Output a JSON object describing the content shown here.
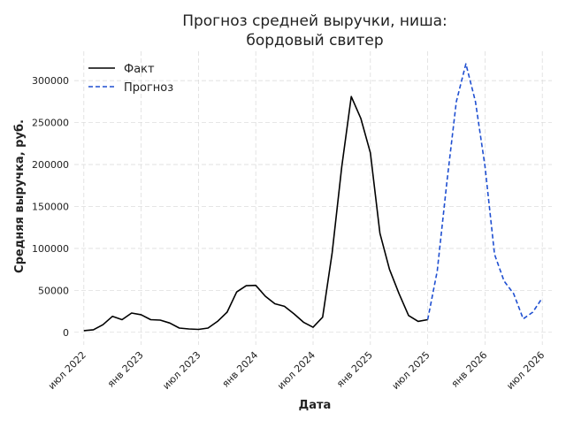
{
  "chart_data": {
    "type": "line",
    "title_lines": [
      "Прогноз средней выручки, ниша:",
      "бордовый свитер"
    ],
    "xlabel": "Дата",
    "ylabel": "Средняя выручка, руб.",
    "ylim": [
      -15000,
      335000
    ],
    "yticks": [
      0,
      50000,
      100000,
      150000,
      200000,
      250000,
      300000
    ],
    "xlim": [
      "2022-06",
      "2026-08"
    ],
    "xticks": [
      {
        "date": "2022-07",
        "label": "июл 2022"
      },
      {
        "date": "2023-01",
        "label": "янв 2023"
      },
      {
        "date": "2023-07",
        "label": "июл 2023"
      },
      {
        "date": "2024-01",
        "label": "янв 2024"
      },
      {
        "date": "2024-07",
        "label": "июл 2024"
      },
      {
        "date": "2025-01",
        "label": "янв 2025"
      },
      {
        "date": "2025-07",
        "label": "июл 2025"
      },
      {
        "date": "2026-01",
        "label": "янв 2026"
      },
      {
        "date": "2026-07",
        "label": "июл 2026"
      }
    ],
    "grid": true,
    "legend_position": "top-left",
    "series": [
      {
        "name": "Факт",
        "color": "#000000",
        "style": "solid",
        "x": [
          "2022-07",
          "2022-08",
          "2022-09",
          "2022-10",
          "2022-11",
          "2022-12",
          "2023-01",
          "2023-02",
          "2023-03",
          "2023-04",
          "2023-05",
          "2023-06",
          "2023-07",
          "2023-08",
          "2023-09",
          "2023-10",
          "2023-11",
          "2023-12",
          "2024-01",
          "2024-02",
          "2024-03",
          "2024-04",
          "2024-05",
          "2024-06",
          "2024-07",
          "2024-08",
          "2024-09",
          "2024-10",
          "2024-11",
          "2024-12",
          "2025-01",
          "2025-02",
          "2025-03",
          "2025-04",
          "2025-05",
          "2025-06",
          "2025-07"
        ],
        "y": [
          2000,
          3000,
          9000,
          19000,
          15000,
          23000,
          21000,
          15000,
          14500,
          11000,
          5000,
          4000,
          3500,
          5000,
          13000,
          24000,
          48000,
          55500,
          56000,
          43000,
          34000,
          31000,
          22000,
          12000,
          6000,
          18000,
          95000,
          197000,
          281000,
          255000,
          214000,
          118000,
          75000,
          46000,
          20000,
          13000,
          15000
        ]
      },
      {
        "name": "Прогноз",
        "color": "#1f4fd1",
        "style": "dashed",
        "x": [
          "2025-07",
          "2025-08",
          "2025-09",
          "2025-10",
          "2025-11",
          "2025-12",
          "2026-01",
          "2026-02",
          "2026-03",
          "2026-04",
          "2026-05",
          "2026-06",
          "2026-07"
        ],
        "y": [
          15000,
          73000,
          178000,
          275000,
          320000,
          275000,
          198000,
          93000,
          61000,
          46000,
          16000,
          24000,
          41000
        ]
      }
    ]
  }
}
